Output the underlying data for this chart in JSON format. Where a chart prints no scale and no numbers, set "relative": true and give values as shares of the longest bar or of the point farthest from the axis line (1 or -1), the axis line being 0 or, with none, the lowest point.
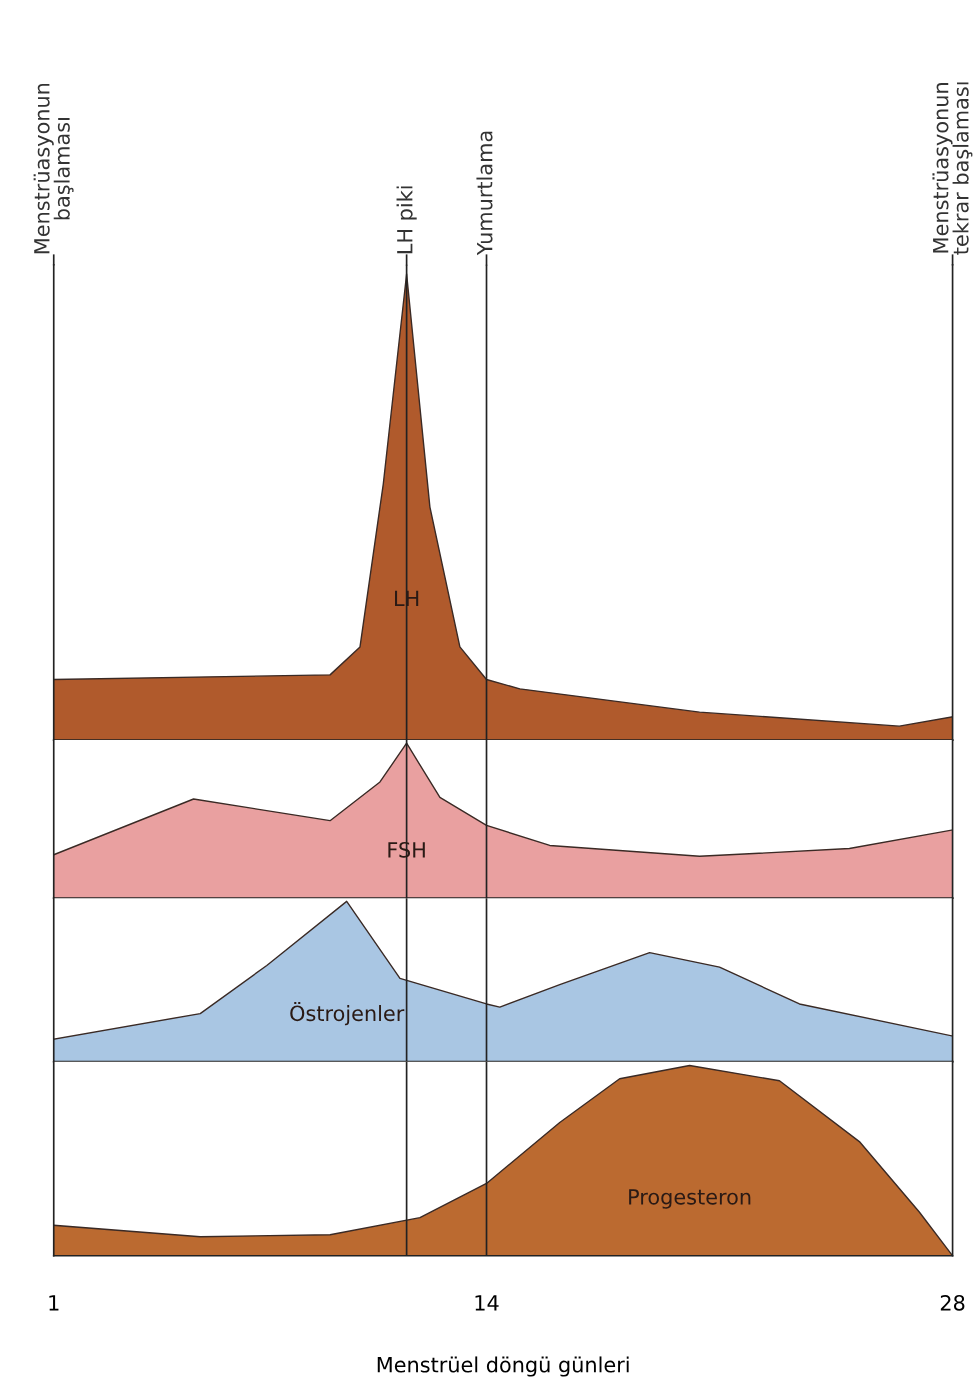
{
  "chart_data": [
    {
      "type": "area",
      "relative": true,
      "xlim": [
        1,
        28
      ],
      "annotations": [
        "Menstrüasyonun\nbaşlaması",
        "Menstrüasyonun\ntekrar başlaması"
      ],
      "x": [
        1,
        9.3,
        10.2,
        10.9,
        11.6,
        12.3,
        13.2,
        14,
        15,
        20.4,
        26.4,
        28
      ],
      "series": [
        {
          "name": "LH",
          "color": "#b05a2c",
          "values": [
            0.13,
            0.14,
            0.2,
            0.55,
            1,
            0.5,
            0.2,
            0.13,
            0.11,
            0.06,
            0.03,
            0.05
          ]
        }
      ],
      "ref_lines": [
        {
          "axis": "x",
          "value": 11.6,
          "label": "LH piki"
        },
        {
          "axis": "x",
          "value": 14,
          "label": "Yumurtlama"
        }
      ]
    },
    {
      "type": "area",
      "relative": true,
      "xlim": [
        1,
        28
      ],
      "x": [
        1,
        5.2,
        9.3,
        10.8,
        11.6,
        12.6,
        14,
        15.9,
        20.4,
        24.9,
        28
      ],
      "series": [
        {
          "name": "FSH",
          "color": "#e9a0a0",
          "values": [
            0.28,
            0.64,
            0.5,
            0.75,
            1,
            0.65,
            0.47,
            0.34,
            0.27,
            0.32,
            0.44
          ]
        }
      ],
      "ref_lines": [
        {
          "axis": "x",
          "value": 11.6
        },
        {
          "axis": "x",
          "value": 14
        }
      ]
    },
    {
      "type": "area",
      "relative": true,
      "xlim": [
        1,
        28
      ],
      "x": [
        1,
        5.4,
        7.4,
        9.8,
        11.4,
        14,
        14.4,
        16.2,
        18.9,
        21.0,
        23.4,
        28
      ],
      "series": [
        {
          "name": "Östrojenler",
          "color": "#a9c6e3",
          "values": [
            0.14,
            0.3,
            0.6,
            1,
            0.52,
            0.36,
            0.34,
            0.48,
            0.68,
            0.59,
            0.36,
            0.16
          ]
        }
      ],
      "ref_lines": [
        {
          "axis": "x",
          "value": 11.6
        },
        {
          "axis": "x",
          "value": 14
        }
      ]
    },
    {
      "type": "area",
      "relative": true,
      "xlim": [
        1,
        28
      ],
      "xticks": [
        1,
        14,
        28
      ],
      "xlabel": "Menstrüel döngü günleri",
      "x": [
        1,
        5.4,
        9.3,
        12,
        14,
        16.2,
        18,
        20.1,
        22.8,
        25.2,
        27,
        28
      ],
      "series": [
        {
          "name": "Progesteron",
          "color": "#bb6a30",
          "values": [
            0.16,
            0.1,
            0.11,
            0.2,
            0.38,
            0.7,
            0.93,
            1,
            0.92,
            0.6,
            0.23,
            0
          ]
        }
      ],
      "ref_lines": [
        {
          "axis": "x",
          "value": 11.6
        },
        {
          "axis": "x",
          "value": 14
        }
      ]
    }
  ]
}
